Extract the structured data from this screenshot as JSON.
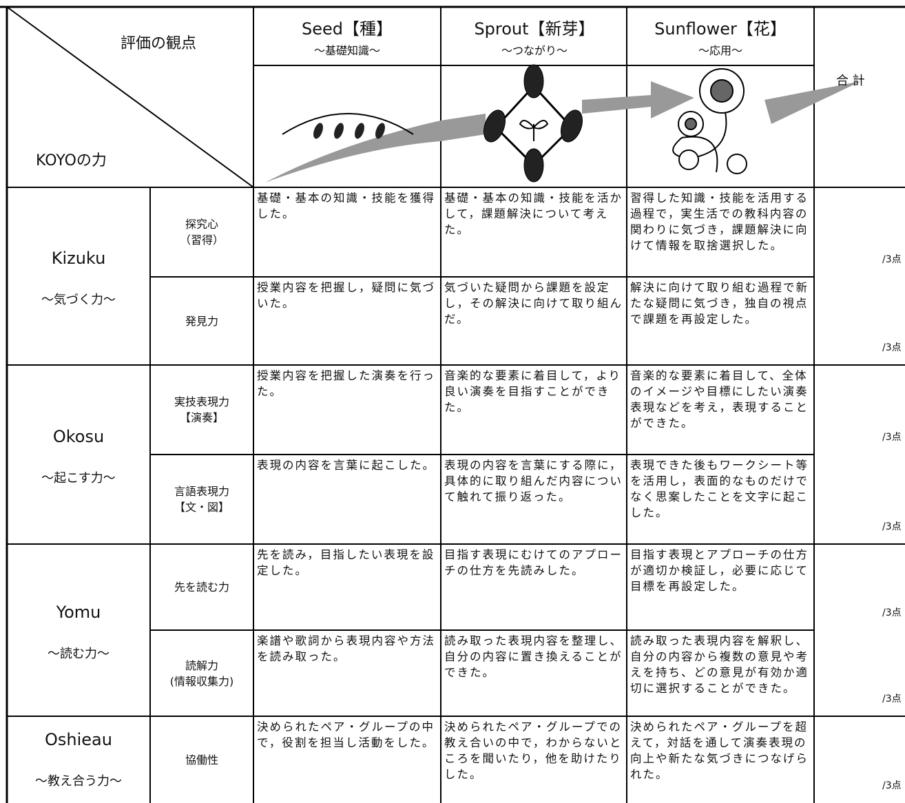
{
  "header": {
    "corner_top": "評価の観点",
    "corner_bottom": "KOYOの力",
    "total": "合 計",
    "levels": [
      {
        "title": "Seed【種】",
        "sub": "～基礎知識～"
      },
      {
        "title": "Sprout【新芽】",
        "sub": "～つながり～"
      },
      {
        "title": "Sunflower【花】",
        "sub": "～応用～"
      }
    ]
  },
  "groups": [
    {
      "name": "Kizuku",
      "sub": "～気づく力～",
      "rows": [
        {
          "aspect": [
            "探究心",
            "（習得）"
          ],
          "cells": [
            "基礎・基本の知識・技能を獲得した。",
            "基礎・基本の知識・技能を活かして，課題解決について考えた。",
            "習得した知識・技能を活用する過程で，実生活での教科内容の関わりに気づき，課題解決に向けて情報を取捨選択した。"
          ],
          "score": "/3点"
        },
        {
          "aspect": [
            "発見力"
          ],
          "cells": [
            "授業内容を把握し，疑問に気づいた。",
            "気づいた疑問から課題を設定し，その解決に向けて取り組んだ。",
            "解決に向けて取り組む過程で新たな疑問に気づき，独自の視点で課題を再設定した。"
          ],
          "score": "/3点"
        }
      ]
    },
    {
      "name": "Okosu",
      "sub": "～起こす力～",
      "rows": [
        {
          "aspect": [
            "実技表現力",
            "【演奏】"
          ],
          "cells": [
            "授業内容を把握した演奏を行った。",
            "音楽的な要素に着目して，より良い演奏を目指すことができた。",
            "音楽的な要素に着目して、全体のイメージや目標にしたい演奏表現などを考え，表現することができた。"
          ],
          "score": "/3点"
        },
        {
          "aspect": [
            "言語表現力",
            "【文・図】"
          ],
          "cells": [
            "表現の内容を言葉に起こした。",
            "表現の内容を言葉にする際に，具体的に取り組んだ内容について触れて振り返った。",
            "表現できた後もワークシート等を活用し，表面的なものだけでなく思案したことを文字に起こした。"
          ],
          "score": "/3点"
        }
      ]
    },
    {
      "name": "Yomu",
      "sub": "～読む力～",
      "rows": [
        {
          "aspect": [
            "先を読む力"
          ],
          "cells": [
            "先を読み，目指したい表現を設定した。",
            "目指す表現にむけてのアプローチの仕方を先読みした。",
            "目指す表現とアプローチの仕方が適切か検証し，必要に応じて目標を再設定した。"
          ],
          "score": "/3点"
        },
        {
          "aspect": [
            "読解力",
            "(情報収集力)"
          ],
          "cells": [
            "楽譜や歌詞から表現内容や方法を読み取った。",
            "読み取った表現内容を整理し、自分の内容に置き換えることができた。",
            "読み取った表現内容を解釈し、自分の内容から複数の意見や考えを持ち、どの意見が有効か適切に選択することができた。"
          ],
          "score": "/3点"
        }
      ]
    },
    {
      "name": "Oshieau",
      "sub": "～教え合う力～",
      "rows": [
        {
          "aspect": [
            "協働性"
          ],
          "cells": [
            "決められたペア・グループの中で，役割を担当し活動をした。",
            "決められたペア・グループでの教え合いの中で，わからないところを聞いたり，他を助けたりした。",
            "決められたペア・グループを超えて，対話を通して演奏表現の向上や新たな気づきにつなげられた。"
          ],
          "score": "/3点"
        }
      ]
    }
  ]
}
